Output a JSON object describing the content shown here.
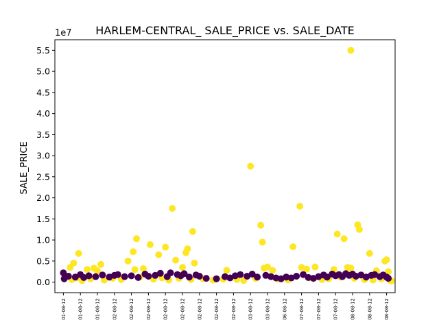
{
  "chart_data": {
    "type": "scatter",
    "title": "HARLEM-CENTRAL_ SALE_PRICE vs. SALE_DATE",
    "xlabel": "",
    "ylabel": "SALE_PRICE",
    "y_multiplier_label": "1e7",
    "ylim": [
      -0.25,
      5.75
    ],
    "xlim": [
      -0.5,
      19.5
    ],
    "grid": false,
    "y_ticks": [
      {
        "value": 0.0,
        "label": "0.0"
      },
      {
        "value": 0.5,
        "label": "0.5"
      },
      {
        "value": 1.0,
        "label": "1.0"
      },
      {
        "value": 1.5,
        "label": "1.5"
      },
      {
        "value": 2.0,
        "label": "2.0"
      },
      {
        "value": 2.5,
        "label": "2.5"
      },
      {
        "value": 3.0,
        "label": "3.0"
      },
      {
        "value": 3.5,
        "label": "3.5"
      },
      {
        "value": 4.0,
        "label": "4.0"
      },
      {
        "value": 4.5,
        "label": "4.5"
      },
      {
        "value": 5.0,
        "label": "5.0"
      },
      {
        "value": 5.5,
        "label": "5.5"
      }
    ],
    "x_ticks": [
      {
        "value": 0,
        "label": "01-08-12"
      },
      {
        "value": 1,
        "label": "01-08-12"
      },
      {
        "value": 2,
        "label": "01-08-12"
      },
      {
        "value": 3,
        "label": "02-08-12"
      },
      {
        "value": 4,
        "label": "02-08-12"
      },
      {
        "value": 5,
        "label": "02-08-12"
      },
      {
        "value": 6,
        "label": "02-08-12"
      },
      {
        "value": 7,
        "label": "02-08-12"
      },
      {
        "value": 8,
        "label": "02-08-12"
      },
      {
        "value": 9,
        "label": "02-08-12"
      },
      {
        "value": 10,
        "label": "02-08-12"
      },
      {
        "value": 11,
        "label": "03-08-12"
      },
      {
        "value": 12,
        "label": "03-08-12"
      },
      {
        "value": 13,
        "label": "06-08-12"
      },
      {
        "value": 14,
        "label": "07-08-12"
      },
      {
        "value": 15,
        "label": "07-08-12"
      },
      {
        "value": 16,
        "label": "07-08-12"
      },
      {
        "value": 17,
        "label": "08-08-12"
      },
      {
        "value": 18,
        "label": "08-08-12"
      },
      {
        "value": 19,
        "label": "08-08-12"
      }
    ],
    "colors": {
      "high": "#fde725",
      "low": "#440154",
      "axis": "#000000"
    },
    "series": [
      {
        "color": "#fde725",
        "points": [
          {
            "x": 0.4,
            "y": 0.35
          },
          {
            "x": 0.6,
            "y": 0.45
          },
          {
            "x": 0.9,
            "y": 0.68
          },
          {
            "x": 1.4,
            "y": 0.3
          },
          {
            "x": 1.8,
            "y": 0.33
          },
          {
            "x": 2.2,
            "y": 0.42
          },
          {
            "x": 2.0,
            "y": 0.27
          },
          {
            "x": 3.8,
            "y": 0.5
          },
          {
            "x": 4.1,
            "y": 0.72
          },
          {
            "x": 4.3,
            "y": 1.03
          },
          {
            "x": 4.2,
            "y": 0.3
          },
          {
            "x": 4.7,
            "y": 0.32
          },
          {
            "x": 5.1,
            "y": 0.89
          },
          {
            "x": 5.6,
            "y": 0.65
          },
          {
            "x": 6.0,
            "y": 0.83
          },
          {
            "x": 6.4,
            "y": 1.75
          },
          {
            "x": 6.6,
            "y": 0.52
          },
          {
            "x": 7.0,
            "y": 0.35
          },
          {
            "x": 7.2,
            "y": 0.7
          },
          {
            "x": 7.3,
            "y": 0.79
          },
          {
            "x": 7.6,
            "y": 1.2
          },
          {
            "x": 7.7,
            "y": 0.45
          },
          {
            "x": 9.6,
            "y": 0.28
          },
          {
            "x": 11.0,
            "y": 2.75
          },
          {
            "x": 11.6,
            "y": 1.35
          },
          {
            "x": 11.7,
            "y": 0.95
          },
          {
            "x": 11.8,
            "y": 0.33
          },
          {
            "x": 12.0,
            "y": 0.36
          },
          {
            "x": 12.3,
            "y": 0.28
          },
          {
            "x": 13.5,
            "y": 0.84
          },
          {
            "x": 13.9,
            "y": 1.8
          },
          {
            "x": 14.0,
            "y": 0.35
          },
          {
            "x": 14.3,
            "y": 0.31
          },
          {
            "x": 14.8,
            "y": 0.36
          },
          {
            "x": 15.9,
            "y": 0.3
          },
          {
            "x": 16.1,
            "y": 1.14
          },
          {
            "x": 16.5,
            "y": 1.03
          },
          {
            "x": 16.7,
            "y": 0.35
          },
          {
            "x": 16.9,
            "y": 0.33
          },
          {
            "x": 16.9,
            "y": 5.5
          },
          {
            "x": 17.3,
            "y": 1.36
          },
          {
            "x": 17.4,
            "y": 1.25
          },
          {
            "x": 18.0,
            "y": 0.68
          },
          {
            "x": 18.4,
            "y": 0.27
          },
          {
            "x": 18.9,
            "y": 0.5
          },
          {
            "x": 19.0,
            "y": 0.53
          },
          {
            "x": 19.1,
            "y": 0.25
          },
          {
            "x": 0.5,
            "y": 0.06
          },
          {
            "x": 0.8,
            "y": 0.1
          },
          {
            "x": 1.1,
            "y": 0.04
          },
          {
            "x": 1.6,
            "y": 0.08
          },
          {
            "x": 2.4,
            "y": 0.05
          },
          {
            "x": 2.9,
            "y": 0.09
          },
          {
            "x": 3.4,
            "y": 0.06
          },
          {
            "x": 4.5,
            "y": 0.12
          },
          {
            "x": 5.3,
            "y": 0.07
          },
          {
            "x": 5.8,
            "y": 0.1
          },
          {
            "x": 6.2,
            "y": 0.05
          },
          {
            "x": 6.8,
            "y": 0.09
          },
          {
            "x": 7.5,
            "y": 0.06
          },
          {
            "x": 8.2,
            "y": 0.08
          },
          {
            "x": 8.8,
            "y": 0.05
          },
          {
            "x": 9.4,
            "y": 0.07
          },
          {
            "x": 10.2,
            "y": 0.06
          },
          {
            "x": 10.6,
            "y": 0.04
          },
          {
            "x": 11.3,
            "y": 0.09
          },
          {
            "x": 12.6,
            "y": 0.07
          },
          {
            "x": 13.2,
            "y": 0.05
          },
          {
            "x": 14.5,
            "y": 0.1
          },
          {
            "x": 15.2,
            "y": 0.06
          },
          {
            "x": 15.6,
            "y": 0.08
          },
          {
            "x": 16.3,
            "y": 0.12
          },
          {
            "x": 17.1,
            "y": 0.09
          },
          {
            "x": 17.7,
            "y": 0.06
          },
          {
            "x": 18.2,
            "y": 0.05
          },
          {
            "x": 18.7,
            "y": 0.08
          },
          {
            "x": 19.2,
            "y": 0.04
          },
          {
            "x": 19.3,
            "y": 0.03
          }
        ]
      },
      {
        "color": "#440154",
        "points": [
          {
            "x": 0.0,
            "y": 0.22
          },
          {
            "x": 0.05,
            "y": 0.08
          },
          {
            "x": 0.3,
            "y": 0.14
          },
          {
            "x": 0.7,
            "y": 0.12
          },
          {
            "x": 1.0,
            "y": 0.18
          },
          {
            "x": 1.2,
            "y": 0.11
          },
          {
            "x": 1.5,
            "y": 0.15
          },
          {
            "x": 1.9,
            "y": 0.13
          },
          {
            "x": 2.3,
            "y": 0.17
          },
          {
            "x": 2.7,
            "y": 0.12
          },
          {
            "x": 3.0,
            "y": 0.16
          },
          {
            "x": 3.2,
            "y": 0.18
          },
          {
            "x": 3.6,
            "y": 0.13
          },
          {
            "x": 4.0,
            "y": 0.15
          },
          {
            "x": 4.4,
            "y": 0.11
          },
          {
            "x": 4.8,
            "y": 0.19
          },
          {
            "x": 5.0,
            "y": 0.14
          },
          {
            "x": 5.4,
            "y": 0.16
          },
          {
            "x": 5.7,
            "y": 0.21
          },
          {
            "x": 6.1,
            "y": 0.13
          },
          {
            "x": 6.3,
            "y": 0.22
          },
          {
            "x": 6.7,
            "y": 0.18
          },
          {
            "x": 6.9,
            "y": 0.15
          },
          {
            "x": 7.1,
            "y": 0.2
          },
          {
            "x": 7.4,
            "y": 0.12
          },
          {
            "x": 7.8,
            "y": 0.17
          },
          {
            "x": 8.0,
            "y": 0.14
          },
          {
            "x": 8.4,
            "y": 0.09
          },
          {
            "x": 9.0,
            "y": 0.08
          },
          {
            "x": 9.5,
            "y": 0.13
          },
          {
            "x": 9.8,
            "y": 0.1
          },
          {
            "x": 10.1,
            "y": 0.15
          },
          {
            "x": 10.4,
            "y": 0.18
          },
          {
            "x": 10.8,
            "y": 0.14
          },
          {
            "x": 11.1,
            "y": 0.19
          },
          {
            "x": 11.4,
            "y": 0.12
          },
          {
            "x": 11.9,
            "y": 0.16
          },
          {
            "x": 12.2,
            "y": 0.13
          },
          {
            "x": 12.5,
            "y": 0.1
          },
          {
            "x": 12.8,
            "y": 0.08
          },
          {
            "x": 13.1,
            "y": 0.12
          },
          {
            "x": 13.4,
            "y": 0.1
          },
          {
            "x": 13.7,
            "y": 0.14
          },
          {
            "x": 14.1,
            "y": 0.18
          },
          {
            "x": 14.4,
            "y": 0.11
          },
          {
            "x": 14.7,
            "y": 0.09
          },
          {
            "x": 15.0,
            "y": 0.13
          },
          {
            "x": 15.3,
            "y": 0.17
          },
          {
            "x": 15.5,
            "y": 0.12
          },
          {
            "x": 15.8,
            "y": 0.19
          },
          {
            "x": 16.0,
            "y": 0.15
          },
          {
            "x": 16.2,
            "y": 0.18
          },
          {
            "x": 16.4,
            "y": 0.13
          },
          {
            "x": 16.6,
            "y": 0.2
          },
          {
            "x": 16.8,
            "y": 0.16
          },
          {
            "x": 17.0,
            "y": 0.19
          },
          {
            "x": 17.2,
            "y": 0.14
          },
          {
            "x": 17.5,
            "y": 0.17
          },
          {
            "x": 17.8,
            "y": 0.12
          },
          {
            "x": 18.1,
            "y": 0.16
          },
          {
            "x": 18.3,
            "y": 0.18
          },
          {
            "x": 18.6,
            "y": 0.13
          },
          {
            "x": 18.8,
            "y": 0.17
          },
          {
            "x": 19.0,
            "y": 0.12
          },
          {
            "x": 19.1,
            "y": 0.09
          }
        ]
      }
    ]
  }
}
